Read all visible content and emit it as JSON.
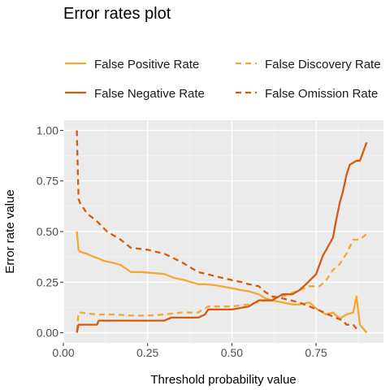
{
  "chart_data": {
    "type": "line",
    "title": "Error rates plot",
    "xlabel": "Threshold probability value",
    "ylabel": "Error rate value",
    "xlim": [
      0,
      0.95
    ],
    "ylim": [
      -0.05,
      1.05
    ],
    "x_ticks": [
      0,
      0.25,
      0.5,
      0.75
    ],
    "x_tick_labels": [
      "0.00",
      "0.25",
      "0.50",
      "0.75"
    ],
    "y_ticks": [
      0,
      0.25,
      0.5,
      0.75,
      1.0
    ],
    "y_tick_labels": [
      "0.00",
      "0.25",
      "0.50",
      "0.75",
      "1.00"
    ],
    "grid": true,
    "legend_position": "top",
    "series": [
      {
        "name": "False Positive Rate",
        "color": "#f5a732",
        "dash": "solid",
        "x": [
          0.04,
          0.045,
          0.05,
          0.07,
          0.09,
          0.1,
          0.12,
          0.15,
          0.17,
          0.2,
          0.23,
          0.27,
          0.3,
          0.33,
          0.36,
          0.4,
          0.42,
          0.45,
          0.5,
          0.53,
          0.55,
          0.58,
          0.6,
          0.62,
          0.65,
          0.68,
          0.7,
          0.73,
          0.75,
          0.78,
          0.8,
          0.82,
          0.84,
          0.86,
          0.87,
          0.88,
          0.9
        ],
        "y": [
          0.5,
          0.41,
          0.4,
          0.39,
          0.375,
          0.37,
          0.355,
          0.345,
          0.335,
          0.3,
          0.3,
          0.295,
          0.29,
          0.27,
          0.26,
          0.24,
          0.24,
          0.235,
          0.22,
          0.21,
          0.205,
          0.19,
          0.17,
          0.16,
          0.15,
          0.14,
          0.14,
          0.15,
          0.12,
          0.09,
          0.1,
          0.07,
          0.09,
          0.1,
          0.18,
          0.04,
          0.0
        ]
      },
      {
        "name": "False Discovery Rate",
        "color": "#f5a732",
        "dash": "dashed",
        "x": [
          0.04,
          0.045,
          0.05,
          0.1,
          0.15,
          0.2,
          0.25,
          0.3,
          0.35,
          0.4,
          0.43,
          0.5,
          0.55,
          0.6,
          0.65,
          0.7,
          0.73,
          0.76,
          0.78,
          0.8,
          0.82,
          0.84,
          0.86,
          0.88,
          0.9
        ],
        "y": [
          0.01,
          0.1,
          0.1,
          0.09,
          0.09,
          0.085,
          0.085,
          0.09,
          0.1,
          0.1,
          0.13,
          0.13,
          0.14,
          0.16,
          0.18,
          0.21,
          0.23,
          0.23,
          0.26,
          0.31,
          0.34,
          0.39,
          0.46,
          0.46,
          0.49
        ]
      },
      {
        "name": "False Negative Rate",
        "color": "#d45a0f",
        "dash": "solid",
        "x": [
          0.04,
          0.045,
          0.1,
          0.105,
          0.15,
          0.2,
          0.25,
          0.3,
          0.32,
          0.4,
          0.42,
          0.43,
          0.5,
          0.55,
          0.58,
          0.62,
          0.65,
          0.68,
          0.7,
          0.72,
          0.75,
          0.77,
          0.78,
          0.8,
          0.81,
          0.82,
          0.83,
          0.84,
          0.85,
          0.86,
          0.87,
          0.88,
          0.9
        ],
        "y": [
          0.0,
          0.04,
          0.04,
          0.06,
          0.06,
          0.06,
          0.06,
          0.06,
          0.075,
          0.075,
          0.09,
          0.115,
          0.115,
          0.13,
          0.16,
          0.16,
          0.19,
          0.19,
          0.21,
          0.24,
          0.29,
          0.38,
          0.41,
          0.47,
          0.56,
          0.64,
          0.7,
          0.78,
          0.83,
          0.84,
          0.85,
          0.85,
          0.94
        ]
      },
      {
        "name": "False Omission Rate",
        "color": "#d45a0f",
        "dash": "dashed",
        "x": [
          0.04,
          0.042,
          0.045,
          0.05,
          0.07,
          0.1,
          0.13,
          0.17,
          0.2,
          0.25,
          0.3,
          0.35,
          0.4,
          0.45,
          0.5,
          0.53,
          0.55,
          0.58,
          0.6,
          0.62,
          0.65,
          0.7,
          0.73,
          0.76,
          0.8,
          0.83,
          0.84,
          0.86,
          0.87
        ],
        "y": [
          1.0,
          0.85,
          0.66,
          0.64,
          0.59,
          0.55,
          0.5,
          0.46,
          0.42,
          0.41,
          0.39,
          0.35,
          0.3,
          0.28,
          0.26,
          0.25,
          0.24,
          0.23,
          0.2,
          0.18,
          0.17,
          0.15,
          0.13,
          0.11,
          0.08,
          0.06,
          0.04,
          0.04,
          0.02
        ]
      }
    ]
  }
}
